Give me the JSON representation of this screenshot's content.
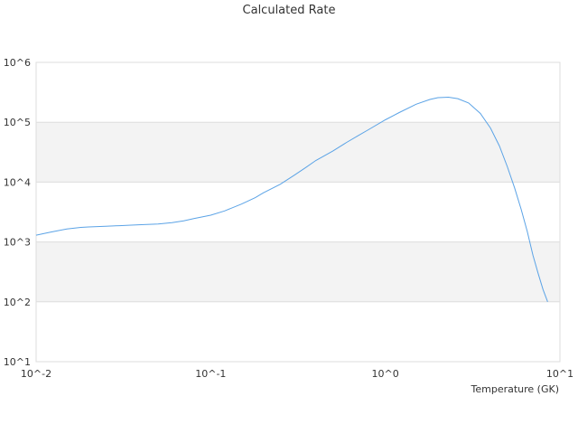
{
  "chart_data": {
    "type": "line",
    "title": "Calculated Rate",
    "xlabel": "Temperature (GK)",
    "ylabel": "",
    "x_scale": "log",
    "y_scale": "log",
    "xlim": [
      0.01,
      10
    ],
    "ylim": [
      10,
      1000000
    ],
    "x_ticks": [
      "10^-2",
      "10^-1",
      "10^0",
      "10^1"
    ],
    "y_ticks": [
      "10^1",
      "10^2",
      "10^3",
      "10^4",
      "10^5",
      "10^6"
    ],
    "grid": true,
    "band_color": "#f3f3f3",
    "grid_color": "#dddddd",
    "series": [
      {
        "color": "#5ba3e6",
        "points": [
          [
            0.01,
            1300
          ],
          [
            0.012,
            1450
          ],
          [
            0.015,
            1650
          ],
          [
            0.018,
            1750
          ],
          [
            0.02,
            1780
          ],
          [
            0.025,
            1830
          ],
          [
            0.03,
            1870
          ],
          [
            0.035,
            1910
          ],
          [
            0.04,
            1940
          ],
          [
            0.05,
            1990
          ],
          [
            0.06,
            2100
          ],
          [
            0.07,
            2250
          ],
          [
            0.08,
            2450
          ],
          [
            0.1,
            2800
          ],
          [
            0.12,
            3300
          ],
          [
            0.15,
            4300
          ],
          [
            0.18,
            5500
          ],
          [
            0.2,
            6600
          ],
          [
            0.25,
            9200
          ],
          [
            0.3,
            13000
          ],
          [
            0.35,
            17500
          ],
          [
            0.4,
            23000
          ],
          [
            0.5,
            33000
          ],
          [
            0.6,
            46000
          ],
          [
            0.7,
            60000
          ],
          [
            0.8,
            75000
          ],
          [
            1.0,
            110000
          ],
          [
            1.2,
            145000
          ],
          [
            1.5,
            200000
          ],
          [
            1.8,
            240000
          ],
          [
            2.0,
            258000
          ],
          [
            2.3,
            262000
          ],
          [
            2.6,
            248000
          ],
          [
            3.0,
            210000
          ],
          [
            3.5,
            140000
          ],
          [
            4.0,
            80000
          ],
          [
            4.5,
            40000
          ],
          [
            5.0,
            18000
          ],
          [
            5.5,
            8000
          ],
          [
            6.0,
            3500
          ],
          [
            6.5,
            1500
          ],
          [
            7.0,
            600
          ],
          [
            7.5,
            300
          ],
          [
            8.0,
            160
          ],
          [
            8.5,
            100
          ]
        ]
      }
    ]
  }
}
